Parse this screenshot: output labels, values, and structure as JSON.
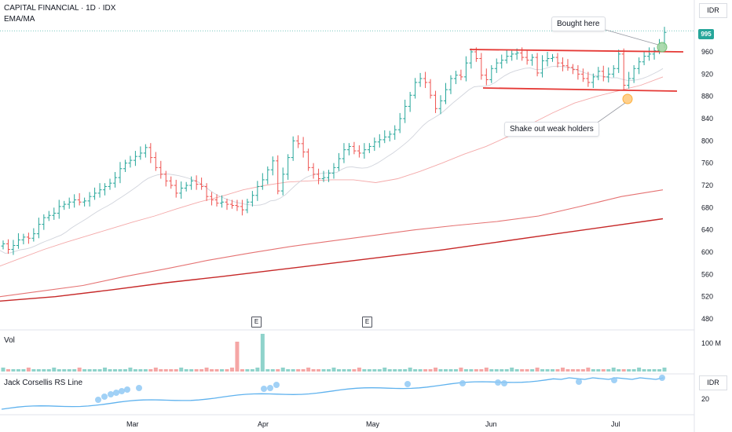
{
  "header": {
    "title": "CAPITAL FINANCIAL · 1D · IDX",
    "indicator": "EMA/MA"
  },
  "currency": "IDR",
  "last_price": "995",
  "annotations": {
    "bought": "Bought here",
    "shakeout": "Shake out weak holders"
  },
  "earnings_badge": "E",
  "volume_pane": {
    "label": "Vol",
    "tick": "100 M"
  },
  "rs_pane": {
    "label": "Jack Corsellis RS Line",
    "currency": "IDR",
    "tick": "20"
  },
  "colors": {
    "up": "#26a69a",
    "down": "#ef5350",
    "trendline": "#e53935",
    "rs": "#5fb2ee"
  },
  "chart_data": {
    "type": "candlestick",
    "title": "CAPITAL FINANCIAL · 1D · IDX",
    "y_ticks": [
      480,
      520,
      560,
      600,
      640,
      680,
      720,
      760,
      800,
      840,
      880,
      920,
      960,
      995
    ],
    "ylim": [
      458,
      1010
    ],
    "x_ticks": [
      "Mar",
      "Apr",
      "May",
      "Jun",
      "Jul"
    ],
    "price": [
      615,
      605,
      612,
      622,
      627,
      625,
      633,
      650,
      662,
      666,
      670,
      682,
      686,
      690,
      694,
      690,
      692,
      700,
      706,
      712,
      718,
      724,
      734,
      750,
      760,
      765,
      772,
      778,
      788,
      770,
      752,
      740,
      728,
      720,
      706,
      715,
      720,
      728,
      722,
      718,
      700,
      694,
      688,
      690,
      686,
      684,
      682,
      676,
      690,
      702,
      718,
      730,
      748,
      764,
      710,
      740,
      770,
      800,
      795,
      780,
      752,
      740,
      732,
      734,
      742,
      752,
      768,
      784,
      790,
      782,
      778,
      784,
      790,
      798,
      802,
      807,
      812,
      820,
      840,
      862,
      882,
      905,
      912,
      905,
      882,
      858,
      872,
      892,
      912,
      918,
      915,
      940,
      960,
      948,
      918,
      910,
      930,
      940,
      945,
      952,
      956,
      958,
      950,
      945,
      950,
      922,
      944,
      948,
      950,
      940,
      935,
      932,
      928,
      920,
      912,
      905,
      915,
      925,
      915,
      920,
      930,
      956,
      900,
      912,
      930,
      942,
      952,
      956,
      962,
      975,
      995
    ],
    "volume_spikes": {
      "Apr-early": 100,
      "Apr": 120
    },
    "ema_mid": [
      575,
      590,
      605,
      618,
      630,
      642,
      654,
      665,
      678,
      690,
      700,
      712,
      720,
      726,
      728,
      730,
      730,
      725,
      732,
      745,
      760,
      776,
      790,
      808,
      830,
      850,
      868,
      880,
      890,
      900,
      915
    ],
    "ma_long1": [
      520,
      530,
      540,
      556,
      570,
      585,
      598,
      610,
      620,
      630,
      640,
      648,
      655,
      665,
      682,
      700,
      712
    ],
    "ma_long2": [
      512,
      520,
      532,
      545,
      556,
      568,
      580,
      592,
      604,
      618,
      632,
      646,
      660
    ],
    "resistance_line": [
      966,
      961
    ],
    "support_line": [
      898,
      891
    ],
    "earnings_dates": [
      "Apr",
      "May"
    ]
  }
}
